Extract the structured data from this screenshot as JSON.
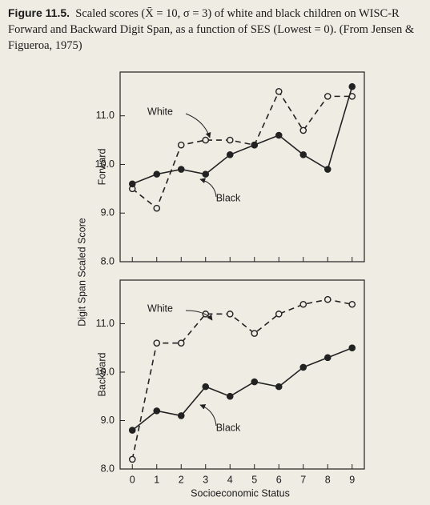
{
  "figure_label": "Figure 11.5.",
  "caption": "Scaled scores (X̄ = 10, σ = 3) of white and black children on WISC-R Forward and Backward Digit Span, as a function of SES (Lowest = 0). (From Jensen & Figueroa, 1975)",
  "y_label": "Digit Span Scaled Score",
  "x_label": "Socioeconomic Status",
  "chart_data": [
    {
      "type": "line",
      "y_label": "Forward",
      "x": [
        0,
        1,
        2,
        3,
        4,
        5,
        6,
        7,
        8,
        9
      ],
      "xlim": [
        -0.5,
        9.5
      ],
      "ylim": [
        8.0,
        11.9
      ],
      "yticks": [
        {
          "value": 8,
          "label": "8.0"
        },
        {
          "value": 9,
          "label": "9.0"
        },
        {
          "value": 10,
          "label": "10.0"
        },
        {
          "value": 11,
          "label": "11.0"
        }
      ],
      "series": [
        {
          "name": "White",
          "color": "#222222",
          "dash": true,
          "marker": "open",
          "values": [
            9.5,
            9.1,
            10.4,
            10.5,
            10.5,
            10.4,
            11.5,
            10.7,
            11.4,
            11.4
          ]
        },
        {
          "name": "Black",
          "color": "#222222",
          "dash": false,
          "marker": "filled",
          "values": [
            9.6,
            9.8,
            9.9,
            9.8,
            10.2,
            10.4,
            10.6,
            10.2,
            9.9,
            11.6
          ]
        }
      ]
    },
    {
      "type": "line",
      "y_label": "Backward",
      "x": [
        0,
        1,
        2,
        3,
        4,
        5,
        6,
        7,
        8,
        9
      ],
      "xlim": [
        -0.5,
        9.5
      ],
      "ylim": [
        8.0,
        11.9
      ],
      "xticks": [
        0,
        1,
        2,
        3,
        4,
        5,
        6,
        7,
        8,
        9
      ],
      "yticks": [
        {
          "value": 8,
          "label": "8.0"
        },
        {
          "value": 9,
          "label": "9.0"
        },
        {
          "value": 10,
          "label": "10.0"
        },
        {
          "value": 11,
          "label": "11.0"
        }
      ],
      "series": [
        {
          "name": "White",
          "color": "#222222",
          "dash": true,
          "marker": "open",
          "values": [
            8.2,
            10.6,
            10.6,
            11.2,
            11.2,
            10.8,
            11.2,
            11.4,
            11.5,
            11.4
          ]
        },
        {
          "name": "Black",
          "color": "#222222",
          "dash": false,
          "marker": "filled",
          "values": [
            8.8,
            9.2,
            9.1,
            9.7,
            9.5,
            9.8,
            9.7,
            10.1,
            10.3,
            10.5
          ]
        }
      ]
    }
  ]
}
